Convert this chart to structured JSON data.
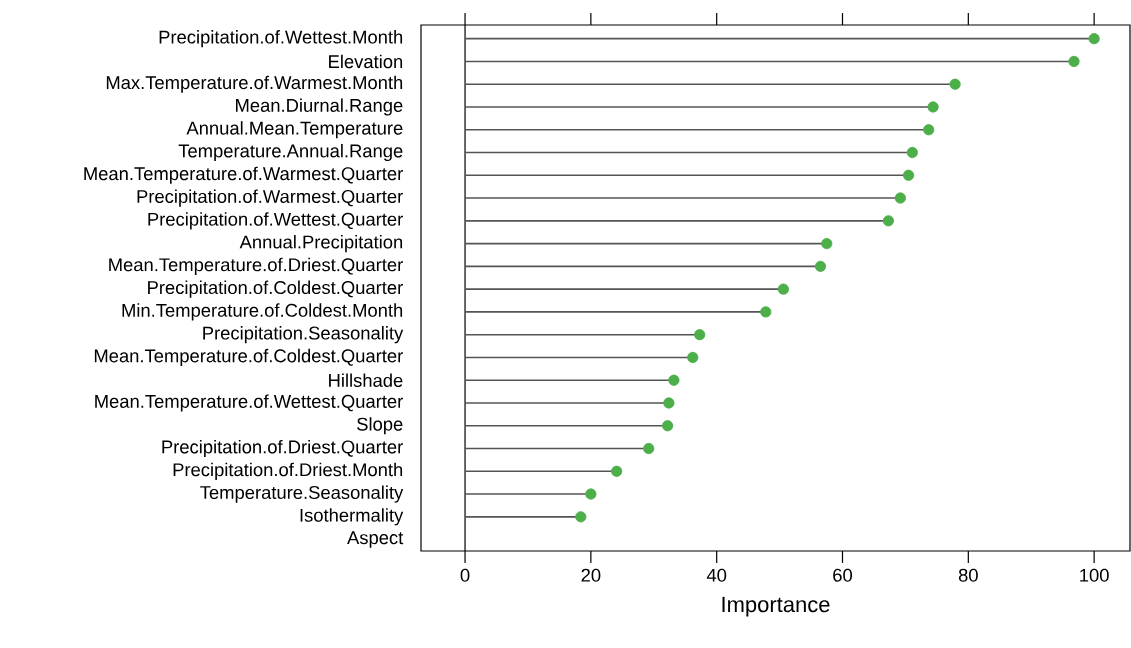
{
  "chart_data": {
    "type": "lollipop",
    "orientation": "horizontal",
    "xlabel": "Importance",
    "categories": [
      "Precipitation.of.Wettest.Month",
      "Elevation",
      "Max.Temperature.of.Warmest.Month",
      "Mean.Diurnal.Range",
      "Annual.Mean.Temperature",
      "Temperature.Annual.Range",
      "Mean.Temperature.of.Warmest.Quarter",
      "Precipitation.of.Warmest.Quarter",
      "Precipitation.of.Wettest.Quarter",
      "Annual.Precipitation",
      "Mean.Temperature.of.Driest.Quarter",
      "Precipitation.of.Coldest.Quarter",
      "Min.Temperature.of.Coldest.Month",
      "Precipitation.Seasonality",
      "Mean.Temperature.of.Coldest.Quarter",
      "Hillshade",
      "Mean.Temperature.of.Wettest.Quarter",
      "Slope",
      "Precipitation.of.Driest.Quarter",
      "Precipitation.of.Driest.Month",
      "Temperature.Seasonality",
      "Isothermality",
      "Aspect"
    ],
    "values": [
      100,
      96.8,
      77.9,
      74.4,
      73.7,
      71.1,
      70.5,
      69.2,
      67.3,
      57.5,
      56.5,
      50.6,
      47.8,
      37.3,
      36.2,
      33.2,
      32.4,
      32.2,
      29.2,
      24.1,
      20,
      18.4,
      null
    ],
    "color": "#4daf4a",
    "marker": "circle",
    "grid": false,
    "xlim": [
      -7,
      105.7
    ],
    "xticks": [
      0,
      20,
      40,
      60,
      80,
      100
    ],
    "ref_lines": [
      {
        "axis": "x",
        "value": 0,
        "color": "#000000"
      }
    ]
  }
}
